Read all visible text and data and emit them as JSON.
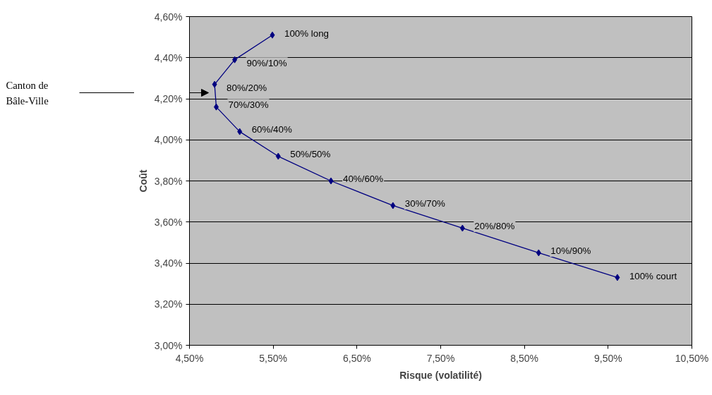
{
  "chart_data": {
    "type": "line",
    "xlabel": "Risque (volatilité)",
    "ylabel": "Coût",
    "x": [
      5.49,
      5.04,
      4.8,
      4.82,
      5.1,
      5.56,
      6.19,
      6.93,
      7.76,
      8.67,
      9.61
    ],
    "series": [
      {
        "color": "#000080",
        "values": [
          4.51,
          4.39,
          4.27,
          4.16,
          4.04,
          3.92,
          3.8,
          3.68,
          3.57,
          3.45,
          3.33
        ]
      }
    ],
    "xlim": [
      4.5,
      10.5
    ],
    "xticks": [
      {
        "value": 4.5,
        "label": "4,50%"
      },
      {
        "value": 5.5,
        "label": "5,50%"
      },
      {
        "value": 6.5,
        "label": "6,50%"
      },
      {
        "value": 7.5,
        "label": "7,50%"
      },
      {
        "value": 8.5,
        "label": "8,50%"
      },
      {
        "value": 9.5,
        "label": "9,50%"
      },
      {
        "value": 10.5,
        "label": "10,50%"
      }
    ],
    "ylim": [
      3.0,
      4.6
    ],
    "yticks": [
      {
        "value": 3.0,
        "label": "3,00%"
      },
      {
        "value": 3.2,
        "label": "3,20%"
      },
      {
        "value": 3.4,
        "label": "3,40%"
      },
      {
        "value": 3.6,
        "label": "3,60%"
      },
      {
        "value": 3.8,
        "label": "3,80%"
      },
      {
        "value": 4.0,
        "label": "4,00%"
      },
      {
        "value": 4.2,
        "label": "4,20%"
      },
      {
        "value": 4.4,
        "label": "4,40%"
      },
      {
        "value": 4.6,
        "label": "4,60%"
      }
    ],
    "grid": "y",
    "marker": "diamond",
    "line_style": "solid",
    "annotations": [
      {
        "text": "100% long",
        "x": 5.49,
        "y": 4.51
      },
      {
        "text": "90%/10%",
        "x": 5.04,
        "y": 4.39
      },
      {
        "text": "80%/20%",
        "x": 4.8,
        "y": 4.27
      },
      {
        "text": "70%/30%",
        "x": 4.82,
        "y": 4.16
      },
      {
        "text": "60%/40%",
        "x": 5.1,
        "y": 4.04
      },
      {
        "text": "50%/50%",
        "x": 5.56,
        "y": 3.92
      },
      {
        "text": "40%/60%",
        "x": 6.19,
        "y": 3.8
      },
      {
        "text": "30%/70%",
        "x": 6.93,
        "y": 3.68
      },
      {
        "text": "20%/80%",
        "x": 7.76,
        "y": 3.57
      },
      {
        "text": "10%/90%",
        "x": 8.67,
        "y": 3.45
      },
      {
        "text": "100% court",
        "x": 9.61,
        "y": 3.33
      },
      "Canton de\nBâle-Ville"
    ]
  }
}
